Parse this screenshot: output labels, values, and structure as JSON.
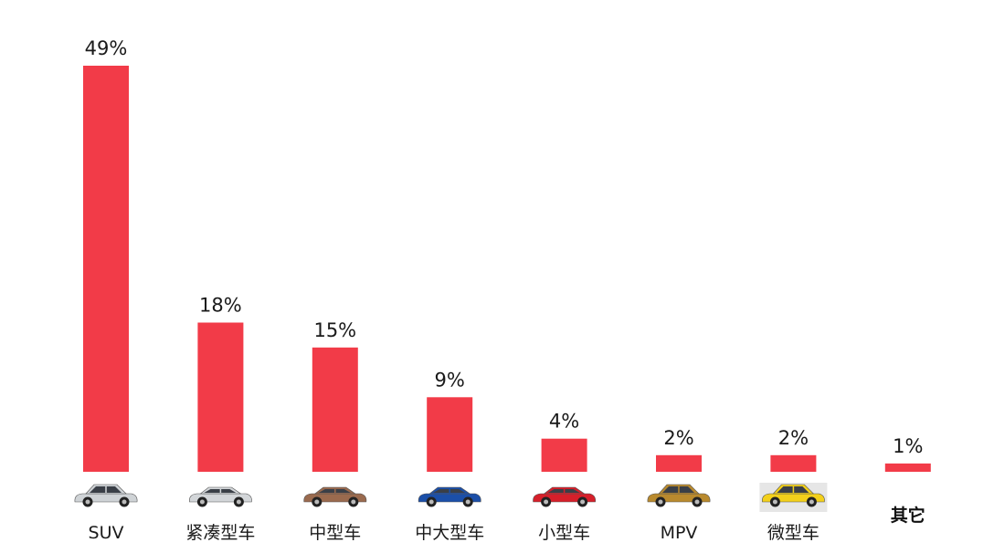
{
  "chart_data": {
    "type": "bar",
    "categories": [
      "SUV",
      "紧凑型车",
      "中型车",
      "中大型车",
      "小型车",
      "MPV",
      "微型车",
      "其它"
    ],
    "values": [
      49,
      18,
      15,
      9,
      4,
      2,
      2,
      1
    ],
    "value_labels": [
      "49%",
      "18%",
      "15%",
      "9%",
      "4%",
      "2%",
      "2%",
      "1%"
    ],
    "ylim": [
      0,
      49
    ],
    "grid": false,
    "legend": "none",
    "title": "",
    "xlabel": "",
    "ylabel": ""
  },
  "colors": {
    "bar": "#f23b48",
    "text": "#1a1a1a",
    "background": "#ffffff"
  },
  "category_icons": [
    {
      "name": "suv-car-icon",
      "color": "#cfd3d6"
    },
    {
      "name": "compact-car-icon",
      "color": "#d3d6d9"
    },
    {
      "name": "midsize-car-icon",
      "color": "#9a6a4e"
    },
    {
      "name": "large-car-icon",
      "color": "#1b4fa8"
    },
    {
      "name": "small-car-icon",
      "color": "#d61f2a"
    },
    {
      "name": "mpv-car-icon",
      "color": "#b98a2e"
    },
    {
      "name": "mini-car-icon",
      "color": "#f3d01b"
    },
    {
      "name": "other-icon",
      "color": "#111111"
    }
  ]
}
